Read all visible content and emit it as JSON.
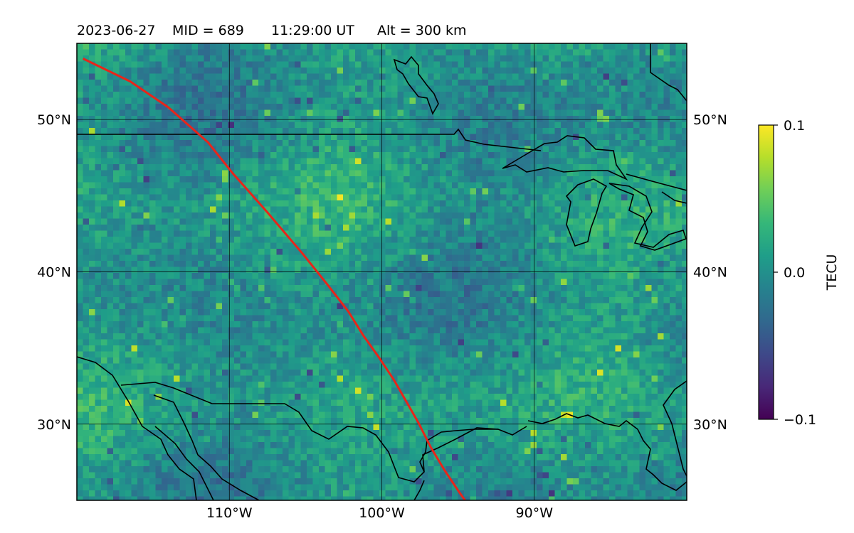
{
  "header": {
    "date": "2023-06-27",
    "mid": "MID = 689",
    "time": "11:29:00  UT",
    "alt": "Alt = 300 km"
  },
  "map": {
    "lon_range": [
      -120,
      -80
    ],
    "lat_range": [
      25,
      55
    ],
    "lat_ticks": [
      {
        "value": 30,
        "label": "30°N"
      },
      {
        "value": 40,
        "label": "40°N"
      },
      {
        "value": 50,
        "label": "50°N"
      }
    ],
    "lon_ticks": [
      {
        "value": -110,
        "label": "110°W"
      },
      {
        "value": -100,
        "label": "100°W"
      },
      {
        "value": -90,
        "label": "90°W"
      }
    ],
    "gridlines": true,
    "field": "TEC perturbation",
    "track_color": "#e8251a",
    "track": [
      [
        -119.6,
        54.0
      ],
      [
        -116.5,
        52.5
      ],
      [
        -114.0,
        50.8
      ],
      [
        -111.4,
        48.5
      ],
      [
        -109.8,
        46.5
      ],
      [
        -107.5,
        43.9
      ],
      [
        -105.2,
        41.2
      ],
      [
        -103.6,
        39.2
      ],
      [
        -102.2,
        37.4
      ],
      [
        -101.2,
        35.8
      ],
      [
        -100.2,
        34.4
      ],
      [
        -99.2,
        32.9
      ],
      [
        -98.4,
        31.5
      ],
      [
        -97.6,
        30.1
      ],
      [
        -96.8,
        28.5
      ],
      [
        -95.9,
        27.0
      ],
      [
        -94.9,
        25.5
      ],
      [
        -94.4,
        24.8
      ]
    ]
  },
  "colorbar": {
    "label": "TECU",
    "min": -0.1,
    "max": 0.1,
    "ticks": [
      {
        "value": 0.1,
        "label": "0.1"
      },
      {
        "value": 0.0,
        "label": "0.0"
      },
      {
        "value": -0.1,
        "label": "−0.1"
      }
    ],
    "colormap": "viridis",
    "colors": [
      "#440154",
      "#482878",
      "#3e4989",
      "#31688e",
      "#26828e",
      "#1f9e89",
      "#35b779",
      "#6ece58",
      "#b5de2b",
      "#fde725"
    ]
  }
}
